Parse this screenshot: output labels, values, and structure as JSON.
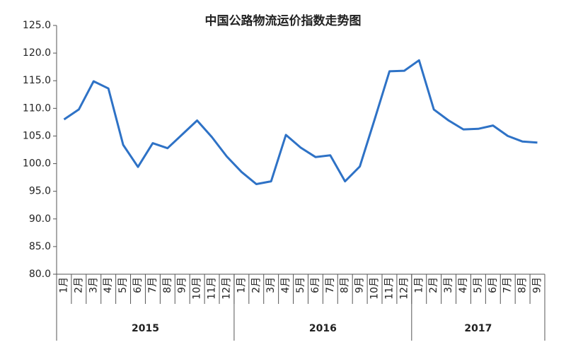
{
  "chart_data": {
    "type": "line",
    "title": "中国公路物流运价指数走势图",
    "categories": [
      "1月",
      "2月",
      "3月",
      "4月",
      "5月",
      "6月",
      "7月",
      "8月",
      "9月",
      "10月",
      "11月",
      "12月",
      "1月",
      "2月",
      "3月",
      "4月",
      "5月",
      "6月",
      "7月",
      "8月",
      "9月",
      "10月",
      "11月",
      "12月",
      "1月",
      "2月",
      "3月",
      "4月",
      "5月",
      "6月",
      "7月",
      "8月",
      "9月"
    ],
    "category_groups": [
      "2015",
      "2016",
      "2017"
    ],
    "values": [
      108.0,
      109.8,
      114.9,
      113.6,
      103.4,
      99.4,
      103.7,
      102.8,
      105.3,
      107.8,
      104.8,
      101.3,
      98.5,
      96.3,
      96.8,
      105.2,
      102.9,
      101.2,
      101.5,
      96.8,
      99.5,
      108.0,
      116.7,
      116.8,
      118.7,
      109.8,
      107.8,
      106.2,
      106.3,
      106.9,
      105.0,
      104.0,
      103.8
    ],
    "color": "#2e72c6",
    "ylim": [
      80,
      125
    ],
    "yticks": [
      {
        "value": 80,
        "label": "80.0"
      },
      {
        "value": 85,
        "label": "85.0"
      },
      {
        "value": 90,
        "label": "90.0"
      },
      {
        "value": 95,
        "label": "95.0"
      },
      {
        "value": 100,
        "label": "100.0"
      },
      {
        "value": 105,
        "label": "105.0"
      },
      {
        "value": 110,
        "label": "110.0"
      },
      {
        "value": 115,
        "label": "115.0"
      },
      {
        "value": 120,
        "label": "120.0"
      },
      {
        "value": 125,
        "label": "125.0"
      }
    ],
    "grid": false
  }
}
